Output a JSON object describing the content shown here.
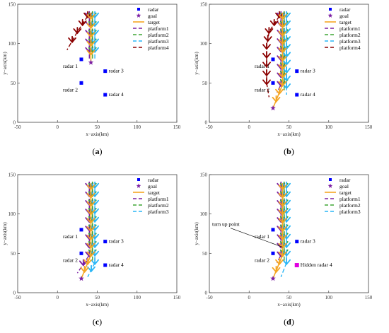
{
  "axes": {
    "xlabel": "x−axis(km)",
    "ylabel": "y−axis(km)",
    "xlim": [
      -50,
      150
    ],
    "ylim": [
      0,
      150
    ],
    "xticks": [
      -50,
      0,
      50,
      100,
      150
    ],
    "yticks": [
      0,
      50,
      100,
      150
    ]
  },
  "colors": {
    "radar": "#0000ff",
    "hidden_radar": "#e000e0",
    "target": "#f5a623",
    "goal": "#7b1fa2",
    "platform1": "#7b1fa2",
    "platform2": "#3fa535",
    "platform3": "#29b6f6",
    "platform4": "#8b0000",
    "arrow_colors": [
      "#7b1fa2",
      "#3fa535",
      "#29b6f6",
      "#f5a623"
    ]
  },
  "chart_data": [
    {
      "type": "scatter",
      "caption": "(a)",
      "legend": [
        "radar",
        "goal",
        "target",
        "platform1",
        "platform2",
        "platform3",
        "platform4"
      ],
      "legend_position": "top-right",
      "radars": [
        {
          "label": "radar 1",
          "x": 30,
          "y": 80
        },
        {
          "label": "radar 2",
          "x": 30,
          "y": 50
        },
        {
          "label": "radar 3",
          "x": 60,
          "y": 65
        },
        {
          "label": "radar 4",
          "x": 60,
          "y": 35
        }
      ],
      "goal": {
        "x": 42,
        "y": 76
      },
      "target_path": [
        [
          42,
          133
        ],
        [
          42,
          76
        ]
      ],
      "platforms": [
        {
          "name": "platform1",
          "path": [
            [
              40,
              135
            ],
            [
              40,
              80
            ]
          ]
        },
        {
          "name": "platform2",
          "path": [
            [
              44,
              135
            ],
            [
              44,
              80
            ]
          ]
        },
        {
          "name": "platform3",
          "path": [
            [
              47,
              135
            ],
            [
              47,
              80
            ]
          ]
        },
        {
          "name": "platform4",
          "path": [
            [
              38,
              135
            ],
            [
              25,
              115
            ],
            [
              12,
              92
            ]
          ]
        }
      ]
    },
    {
      "type": "scatter",
      "caption": "(b)",
      "legend": [
        "radar",
        "goal",
        "target",
        "platform1",
        "platform2",
        "platform3",
        "platform4"
      ],
      "legend_position": "top-right",
      "radars": [
        {
          "label": "radar 1",
          "x": 30,
          "y": 80
        },
        {
          "label": "radar 2",
          "x": 30,
          "y": 50
        },
        {
          "label": "radar 3",
          "x": 60,
          "y": 65
        },
        {
          "label": "radar 4",
          "x": 60,
          "y": 35
        }
      ],
      "goal": {
        "x": 30,
        "y": 18
      },
      "target_path": [
        [
          42,
          133
        ],
        [
          42,
          48
        ],
        [
          30,
          18
        ]
      ],
      "platforms": [
        {
          "name": "platform1",
          "path": [
            [
              40,
              135
            ],
            [
              40,
              48
            ],
            [
              35,
              38
            ]
          ]
        },
        {
          "name": "platform2",
          "path": [
            [
              44,
              135
            ],
            [
              44,
              40
            ]
          ]
        },
        {
          "name": "platform3",
          "path": [
            [
              47,
              135
            ],
            [
              47,
              35
            ]
          ]
        },
        {
          "name": "platform4",
          "path": [
            [
              38,
              135
            ],
            [
              25,
              115
            ],
            [
              22,
              95
            ],
            [
              22,
              50
            ],
            [
              25,
              32
            ]
          ]
        }
      ]
    },
    {
      "type": "scatter",
      "caption": "(c)",
      "legend": [
        "radar",
        "goal",
        "target",
        "platform1",
        "platform2",
        "platform3"
      ],
      "legend_position": "top-right",
      "radars": [
        {
          "label": "radar 1",
          "x": 30,
          "y": 80
        },
        {
          "label": "radar 2",
          "x": 30,
          "y": 50
        },
        {
          "label": "radar 3",
          "x": 60,
          "y": 65
        },
        {
          "label": "radar 4",
          "x": 60,
          "y": 35
        }
      ],
      "goal": {
        "x": 30,
        "y": 18
      },
      "target_path": [
        [
          42,
          133
        ],
        [
          42,
          48
        ],
        [
          30,
          18
        ]
      ],
      "platforms": [
        {
          "name": "platform1",
          "path": [
            [
              40,
              135
            ],
            [
              40,
              48
            ],
            [
              25,
              25
            ]
          ]
        },
        {
          "name": "platform2",
          "path": [
            [
              44,
              135
            ],
            [
              44,
              40
            ]
          ]
        },
        {
          "name": "platform3",
          "path": [
            [
              47,
              135
            ],
            [
              47,
              38
            ],
            [
              38,
              20
            ]
          ]
        }
      ]
    },
    {
      "type": "scatter",
      "caption": "(d)",
      "legend": [
        "radar",
        "goal",
        "target",
        "platform1",
        "platform2",
        "platform3"
      ],
      "legend_position": "top-right",
      "radars": [
        {
          "label": "radar 1",
          "x": 30,
          "y": 80
        },
        {
          "label": "radar 2",
          "x": 30,
          "y": 50
        },
        {
          "label": "radar 3",
          "x": 60,
          "y": 65
        },
        {
          "label": "Hidden radar 4",
          "x": 60,
          "y": 35,
          "hidden": true
        }
      ],
      "goal": {
        "x": 30,
        "y": 18
      },
      "annotation": {
        "text": "turn up point",
        "x": 42,
        "y": 58
      },
      "target_path": [
        [
          42,
          133
        ],
        [
          42,
          48
        ],
        [
          30,
          18
        ]
      ],
      "platforms": [
        {
          "name": "platform1",
          "path": [
            [
              40,
              135
            ],
            [
              40,
              48
            ],
            [
              35,
              38
            ]
          ]
        },
        {
          "name": "platform2",
          "path": [
            [
              44,
              135
            ],
            [
              44,
              40
            ]
          ]
        },
        {
          "name": "platform3",
          "path": [
            [
              47,
              135
            ],
            [
              47,
              38
            ],
            [
              40,
              20
            ]
          ]
        }
      ]
    }
  ]
}
